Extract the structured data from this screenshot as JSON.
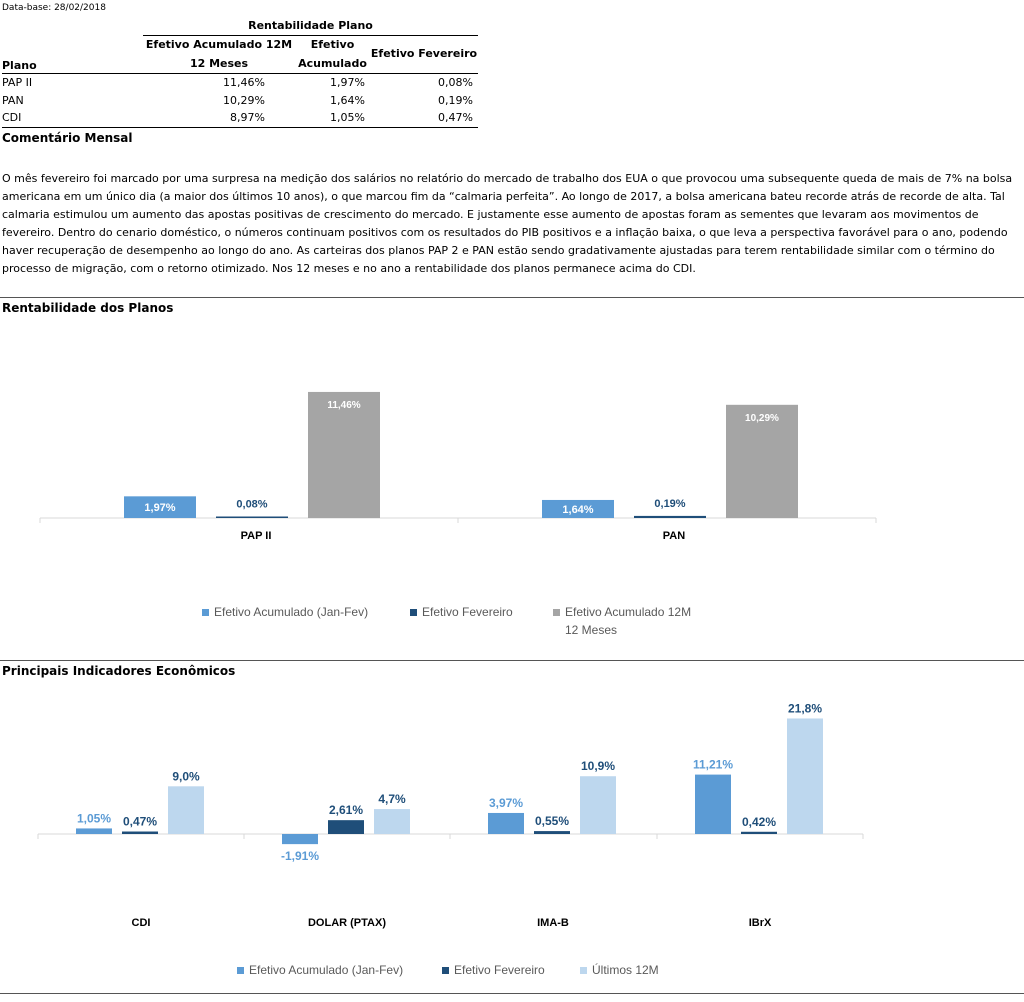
{
  "database": "Data-base: 28/02/2018",
  "table": {
    "group_title": "Rentabilidade Plano",
    "col_plano": "Plano",
    "col1_line1": "Efetivo Acumulado 12M",
    "col1_line2": "12 Meses",
    "col2_line1": "Efetivo",
    "col2_line2": "Acumulado",
    "col3": "Efetivo Fevereiro",
    "rows": [
      {
        "plano": "PAP II",
        "acum12": "11,46%",
        "acum": "1,97%",
        "fev": "0,08%"
      },
      {
        "plano": "PAN",
        "acum12": "10,29%",
        "acum": "1,64%",
        "fev": "0,19%"
      },
      {
        "plano": "CDI",
        "acum12": "8,97%",
        "acum": "1,05%",
        "fev": "0,47%"
      }
    ]
  },
  "comment": {
    "title": "Comentário Mensal",
    "text": "O mês fevereiro foi marcado por uma surpresa na medição dos salários no relatório do mercado de trabalho dos EUA o que provocou uma subsequente queda de mais de 7% na bolsa americana em um único dia (a maior dos últimos 10 anos), o que marcou fim da “calmaria perfeita”. Ao longo de 2017, a bolsa americana bateu recorde atrás de recorde de alta. Tal calmaria estimulou um aumento das apostas positivas de crescimento do mercado. E justamente esse aumento de apostas foram as sementes que levaram aos movimentos de fevereiro. Dentro do cenario doméstico, o números continuam positivos com os resultados do PIB positivos e a inflação baixa, o que leva a perspectiva favorável para o ano, podendo haver recuperação de desempenho ao longo do ano. As carteiras dos planos PAP 2 e PAN estão sendo gradativamente ajustadas para terem rentabilidade similar com o término do processo de migração, com o retorno otimizado. Nos 12 meses e no ano a rentabilidade dos planos permanece acima do CDI."
  },
  "section_titles": {
    "planos": "Rentabilidade dos Planos",
    "indicadores": "Principais Indicadores Econômicos"
  },
  "colors": {
    "acumulado": "#5B9BD5",
    "fevereiro": "#1F4E79",
    "doze_planos": "#A5A5A5",
    "doze_indic": "#BDD7EE",
    "label_dark": "#1F4E79",
    "label_light": "#ffffff"
  },
  "chart_data": [
    {
      "type": "bar",
      "title": "",
      "categories": [
        "PAP II",
        "PAN"
      ],
      "series": [
        {
          "name": "Efetivo Acumulado (Jan-Fev)",
          "values": [
            1.97,
            1.64
          ],
          "labels": [
            "1,97%",
            "1,64%"
          ]
        },
        {
          "name": "Efetivo Fevereiro",
          "values": [
            0.08,
            0.19
          ],
          "labels": [
            "0,08%",
            "0,19%"
          ]
        },
        {
          "name": "Efetivo Acumulado 12M 12 Meses",
          "values": [
            11.46,
            10.29
          ],
          "labels": [
            "11,46%",
            "10,29%"
          ]
        }
      ],
      "legend": [
        "Efetivo Acumulado (Jan-Fev)",
        "Efetivo Fevereiro",
        "Efetivo Acumulado 12M",
        "12 Meses"
      ],
      "legend_position": "bottom",
      "grid": false
    },
    {
      "type": "bar",
      "title": "",
      "categories": [
        "CDI",
        "DOLAR (PTAX)",
        "IMA-B",
        "IBrX"
      ],
      "series": [
        {
          "name": "Efetivo Acumulado (Jan-Fev)",
          "values": [
            1.05,
            -1.91,
            3.97,
            11.21
          ],
          "labels": [
            "1,05%",
            "-1,91%",
            "3,97%",
            "11,21%"
          ]
        },
        {
          "name": "Efetivo Fevereiro",
          "values": [
            0.47,
            2.61,
            0.55,
            0.42
          ],
          "labels": [
            "0,47%",
            "2,61%",
            "0,55%",
            "0,42%"
          ]
        },
        {
          "name": "Últimos 12M",
          "values": [
            9.0,
            4.7,
            10.9,
            21.8
          ],
          "labels": [
            "9,0%",
            "4,7%",
            "10,9%",
            "21,8%"
          ]
        }
      ],
      "legend": [
        "Efetivo Acumulado (Jan-Fev)",
        "Efetivo Fevereiro",
        "Últimos 12M"
      ],
      "legend_position": "bottom",
      "grid": false
    }
  ]
}
